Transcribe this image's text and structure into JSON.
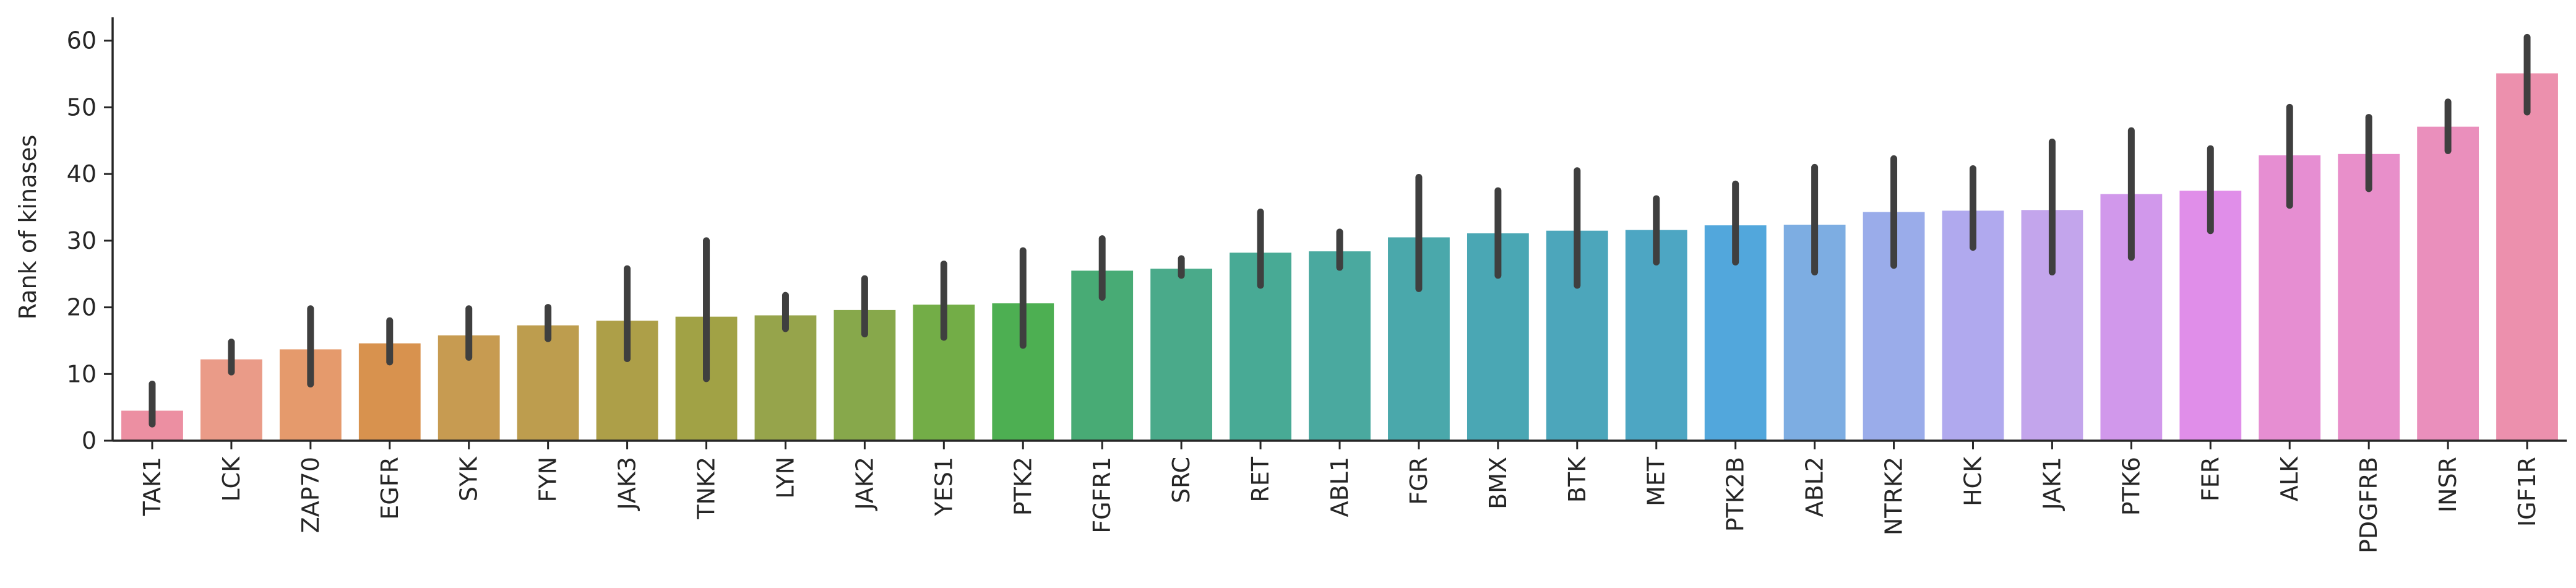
{
  "chart_data": {
    "type": "bar",
    "title": "",
    "xlabel": "",
    "ylabel": "Rank of kinases",
    "ylim": [
      0,
      63.5
    ],
    "yticks": [
      0,
      10,
      20,
      30,
      40,
      50,
      60
    ],
    "grid": false,
    "error_bars": true,
    "categories": [
      "TAK1",
      "LCK",
      "ZAP70",
      "EGFR",
      "SYK",
      "FYN",
      "JAK3",
      "TNK2",
      "LYN",
      "JAK2",
      "YES1",
      "PTK2",
      "FGFR1",
      "SRC",
      "RET",
      "ABL1",
      "FGR",
      "BMX",
      "BTK",
      "MET",
      "PTK2B",
      "ABL2",
      "NTRK2",
      "HCK",
      "JAK1",
      "PTK6",
      "FER",
      "ALK",
      "PDGFRB",
      "INSR",
      "IGF1R"
    ],
    "values": [
      4.5,
      12.2,
      13.7,
      14.6,
      15.8,
      17.3,
      18.0,
      18.6,
      18.8,
      19.6,
      20.4,
      20.6,
      25.5,
      25.8,
      28.2,
      28.4,
      30.5,
      31.1,
      31.5,
      31.6,
      32.3,
      32.4,
      34.3,
      34.5,
      34.6,
      37.0,
      37.5,
      42.8,
      43.0,
      47.1,
      55.1
    ],
    "err_low": [
      2.5,
      10.3,
      8.5,
      11.8,
      12.5,
      15.3,
      12.3,
      9.3,
      16.8,
      16.0,
      15.5,
      14.3,
      21.5,
      24.8,
      23.3,
      26.0,
      22.8,
      24.8,
      23.3,
      26.8,
      26.8,
      25.3,
      26.3,
      29.0,
      25.3,
      27.5,
      31.5,
      35.3,
      37.8,
      43.5,
      49.3
    ],
    "err_high": [
      8.5,
      14.8,
      19.8,
      18.0,
      19.8,
      20.0,
      25.8,
      30.0,
      21.8,
      24.3,
      26.5,
      28.5,
      30.3,
      27.3,
      34.3,
      31.3,
      39.5,
      37.5,
      40.5,
      36.3,
      38.5,
      41.0,
      42.3,
      40.8,
      44.8,
      46.5,
      43.8,
      50.0,
      48.5,
      50.8,
      60.5
    ],
    "colors": [
      "#ec8fa2",
      "#ea9b88",
      "#e59a6c",
      "#d8924e",
      "#c79b51",
      "#bd9d4e",
      "#ad9f48",
      "#a1a245",
      "#96a44b",
      "#87a84b",
      "#73ad47",
      "#4daf52",
      "#48ab75",
      "#4aaa8a",
      "#48aa95",
      "#4aa99f",
      "#4aa8ab",
      "#4aa7b4",
      "#4ca6bb",
      "#4da6c3",
      "#52a7dc",
      "#7dade2",
      "#9aacea",
      "#b0a9ee",
      "#c3a5ec",
      "#d198eb",
      "#e08ee9",
      "#e68ed2",
      "#e88fca",
      "#ea8fbc",
      "#ec90ad"
    ]
  }
}
